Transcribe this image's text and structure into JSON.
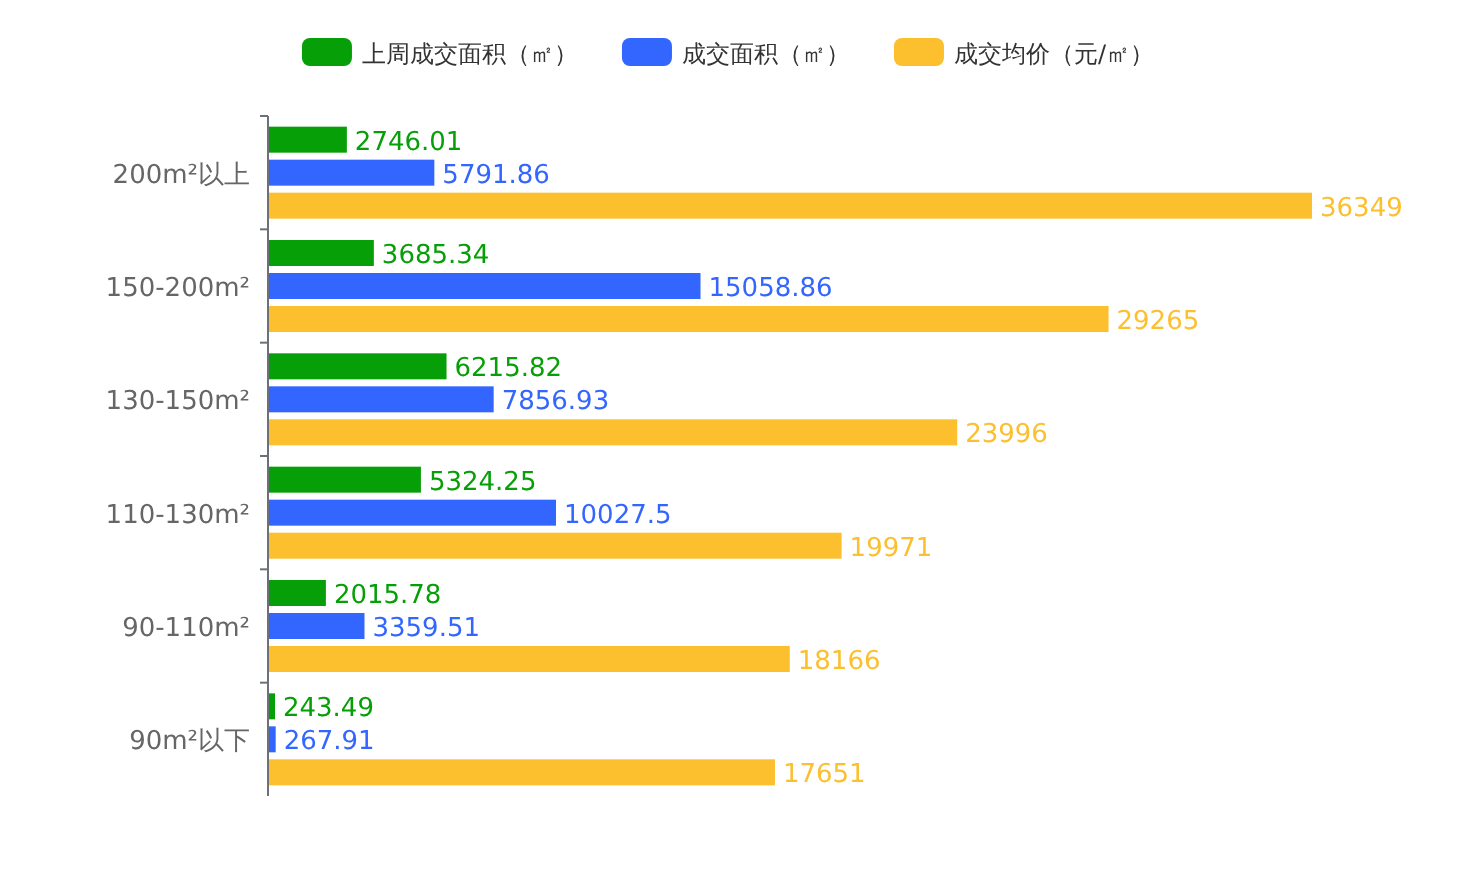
{
  "chart_data": {
    "type": "bar",
    "orientation": "horizontal",
    "data_labels": true,
    "legend": "top",
    "categories": [
      "200m²以上",
      "150-200m²",
      "130-150m²",
      "110-130m²",
      "90-110m²",
      "90m²以下"
    ],
    "series": [
      {
        "name": "上周成交面积（㎡）",
        "color": "#079f07",
        "values": [
          2746.01,
          3685.34,
          6215.82,
          5324.25,
          2015.78,
          243.49
        ]
      },
      {
        "name": "成交面积（㎡）",
        "color": "#3366ff",
        "values": [
          5791.86,
          15058.86,
          7856.93,
          10027.5,
          3359.51,
          267.91
        ]
      },
      {
        "name": "成交均价（元/㎡）",
        "color": "#fcbf2e",
        "values": [
          36349,
          29265,
          23996,
          19971,
          18166,
          17651
        ]
      }
    ]
  }
}
